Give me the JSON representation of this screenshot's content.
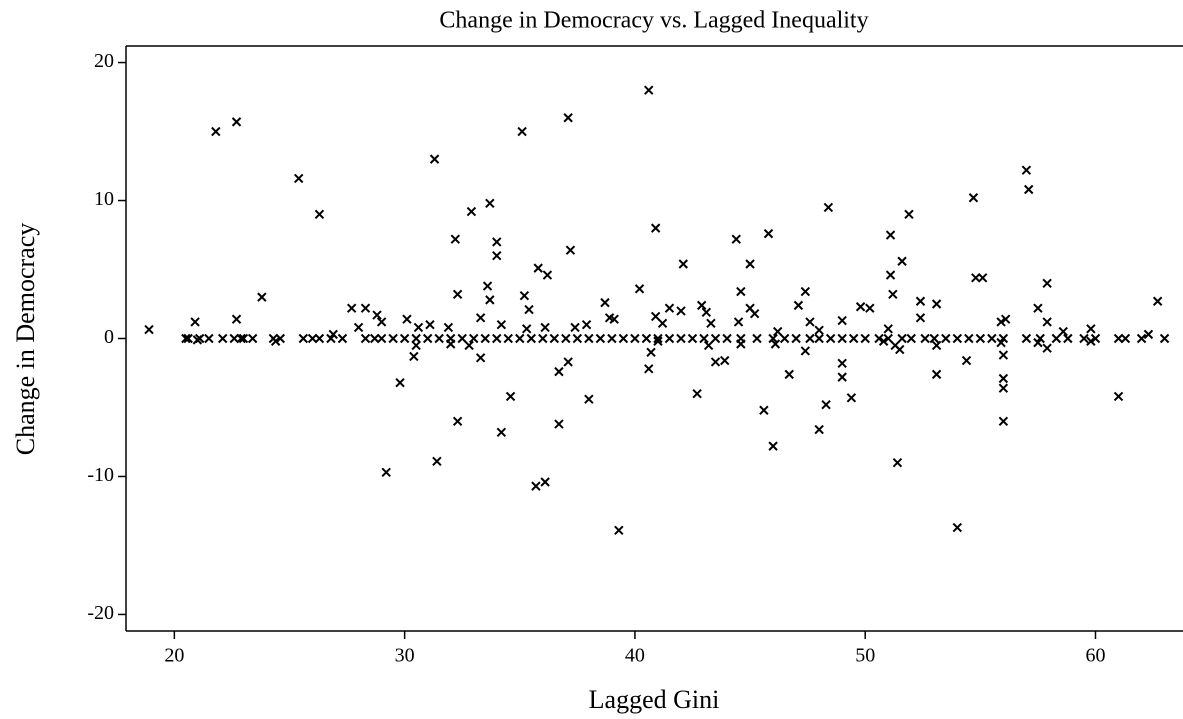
{
  "chart_data": {
    "type": "scatter",
    "title": "Change in Democracy vs. Lagged Inequality",
    "x_label": "Lagged Gini",
    "y_label": "Change in Democracy",
    "xlim": [
      17.9,
      63.8
    ],
    "ylim": [
      -21.2,
      21.2
    ],
    "xticks": [
      20,
      30,
      40,
      50,
      60
    ],
    "yticks": [
      -20,
      -10,
      0,
      10,
      20
    ],
    "grid": false,
    "series": [
      {
        "name": "Change in Democracy",
        "color": "#000000",
        "x": [
          18.9,
          21.8,
          22.7,
          25.4,
          26.3,
          23.8,
          22.7,
          20.9,
          31.3,
          32.9,
          33.7,
          32.2,
          34.0,
          34.0,
          35.1,
          37.1,
          40.6,
          37.2,
          35.8,
          36.2,
          40.9,
          42.1,
          40.2,
          44.4,
          45.0,
          45.8,
          48.4,
          51.1,
          51.9,
          51.6,
          51.1,
          54.7,
          57.0,
          57.1,
          54.8,
          55.1,
          57.9,
          62.7,
          44.6,
          47.4,
          51.2,
          52.4,
          53.1,
          32.3,
          33.6,
          33.7,
          35.2,
          35.4,
          38.7,
          29.8,
          30.4,
          29.2,
          31.4,
          32.3,
          33.3,
          34.2,
          34.6,
          35.7,
          36.1,
          36.7,
          36.7,
          37.1,
          38.0,
          39.3,
          40.6,
          40.7,
          42.7,
          43.5,
          43.9,
          45.6,
          46.0,
          46.7,
          47.4,
          48.0,
          48.3,
          49.0,
          49.0,
          49.4,
          51.4,
          53.1,
          54.0,
          54.4,
          56.0,
          56.0,
          56.0,
          56.0,
          57.9,
          61.0,
          20.5,
          20.6,
          21.1,
          21.5,
          22.1,
          22.6,
          22.9,
          23.0,
          23.4,
          24.3,
          24.6,
          25.6,
          26.0,
          26.3,
          26.8,
          27.3,
          28.3,
          28.7,
          29.0,
          29.5,
          30.0,
          30.5,
          31.0,
          31.5,
          32.0,
          32.5,
          33.0,
          33.5,
          34.0,
          34.5,
          35.0,
          35.5,
          36.0,
          36.5,
          37.0,
          37.5,
          38.0,
          38.5,
          39.0,
          39.5,
          40.0,
          40.5,
          41.0,
          41.5,
          42.0,
          42.5,
          43.0,
          43.5,
          44.0,
          44.6,
          45.3,
          46.0,
          46.5,
          47.0,
          47.6,
          48.0,
          48.5,
          49.0,
          49.5,
          50.0,
          50.6,
          51.0,
          51.6,
          52.0,
          52.6,
          53.0,
          53.5,
          54.0,
          54.5,
          55.0,
          55.5,
          56.0,
          57.0,
          57.6,
          58.3,
          58.8,
          59.5,
          60.0,
          61.0,
          61.3,
          62.0,
          63.0,
          27.7,
          28.3,
          28.8,
          29.0,
          30.1,
          30.6,
          31.1,
          31.9,
          33.3,
          34.2,
          35.3,
          36.1,
          37.4,
          37.9,
          38.9,
          39.1,
          40.9,
          41.2,
          41.5,
          42.0,
          42.9,
          43.1,
          43.3,
          44.5,
          45.0,
          45.2,
          46.2,
          47.1,
          47.6,
          48.0,
          49.0,
          49.8,
          50.2,
          51.0,
          52.4,
          55.9,
          56.1,
          57.5,
          57.9,
          58.6,
          59.8,
          62.3,
          28.0,
          26.9,
          32.8,
          32.0,
          30.5,
          41.0,
          43.2,
          44.6,
          50.8,
          51.3,
          51.5,
          53.1,
          55.9,
          57.5,
          59.8,
          46.1,
          24.4,
          21.0
        ],
        "values": [
          0.65,
          15,
          15.7,
          11.6,
          9,
          3,
          1.4,
          1.2,
          13,
          9.2,
          9.8,
          7.2,
          7,
          6,
          15,
          16,
          18,
          6.4,
          5.1,
          4.6,
          8,
          5.4,
          3.6,
          7.2,
          5.4,
          7.6,
          9.5,
          7.5,
          9,
          5.6,
          4.6,
          10.2,
          12.2,
          10.8,
          4.4,
          4.4,
          4,
          2.7,
          3.4,
          3.4,
          3.2,
          2.7,
          2.5,
          3.2,
          3.8,
          2.8,
          3.1,
          2.1,
          2.6,
          -3.2,
          -1.3,
          -9.7,
          -8.9,
          -6,
          -1.4,
          -6.8,
          -4.2,
          -10.7,
          -10.4,
          -6.2,
          -2.4,
          -1.7,
          -4.4,
          -13.9,
          -2.2,
          -1,
          -4,
          -1.7,
          -1.6,
          -5.2,
          -7.8,
          -2.6,
          -0.9,
          -6.6,
          -4.8,
          -2.8,
          -1.8,
          -4.3,
          -9,
          -2.6,
          -13.7,
          -1.6,
          -1.2,
          -2.9,
          -3.6,
          -6,
          -0.7,
          -4.2,
          0,
          0,
          0,
          0,
          0,
          0,
          0,
          0,
          0,
          0,
          0,
          0,
          0,
          0,
          0,
          0,
          0,
          0,
          0,
          0,
          0,
          0,
          0,
          0,
          0,
          0,
          0,
          0,
          0,
          0,
          0,
          0,
          0,
          0,
          0,
          0,
          0,
          0,
          0,
          0,
          0,
          0,
          0,
          0,
          0,
          0,
          0,
          0,
          0,
          0,
          0,
          0,
          0,
          0,
          0,
          0,
          0,
          0,
          0,
          0,
          0,
          0,
          0,
          0,
          0,
          0,
          0,
          0,
          0,
          0,
          0,
          0,
          0,
          0,
          0,
          0,
          0,
          0,
          0,
          0,
          0,
          0,
          2.2,
          2.2,
          1.7,
          1.2,
          1.4,
          0.8,
          1,
          0.8,
          1.5,
          1,
          0.7,
          0.8,
          0.8,
          1,
          1.5,
          1.4,
          1.6,
          1.1,
          2.2,
          2,
          2.4,
          1.9,
          1.1,
          1.2,
          2.2,
          1.8,
          0.5,
          2.4,
          1.2,
          0.6,
          1.3,
          2.3,
          2.2,
          0.7,
          1.5,
          1.2,
          1.4,
          2.2,
          1.2,
          0.5,
          0.7,
          0.3,
          0.8,
          0.3,
          -0.5,
          -0.4,
          -0.5,
          -0.2,
          -0.5,
          -0.4,
          -0.2,
          -0.5,
          -0.8,
          -0.5,
          -0.3,
          -0.3,
          -0.2,
          -0.4,
          -0.2,
          -0.1
        ]
      }
    ]
  }
}
